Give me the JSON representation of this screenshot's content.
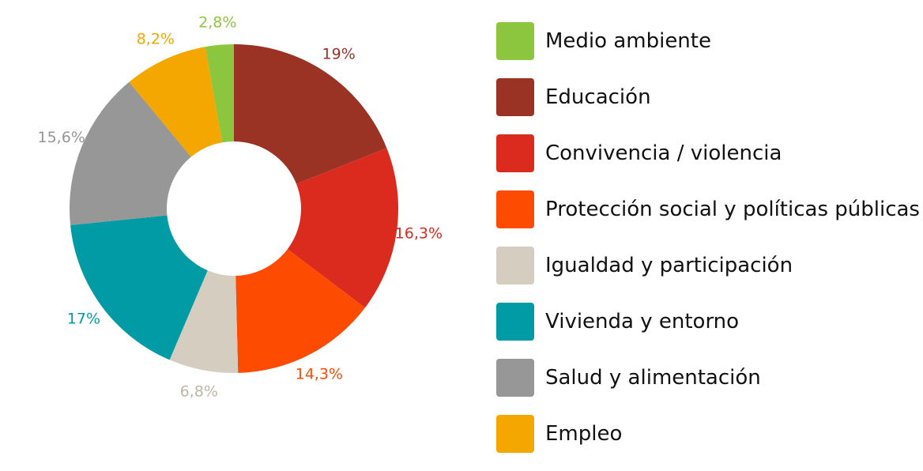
{
  "chart_data": {
    "type": "pie",
    "title": "",
    "donut": true,
    "legend_position": "right",
    "slices": [
      {
        "label": "Medio ambiente",
        "value": 2.8,
        "display": "2,8%",
        "color": "#8cc63f"
      },
      {
        "label": "Educación",
        "value": 19,
        "display": "19%",
        "color": "#9a3324"
      },
      {
        "label": "Convivencia / violencia",
        "value": 16.3,
        "display": "16,3%",
        "color": "#db2b1f"
      },
      {
        "label": "Protección social y políticas públicas",
        "value": 14.3,
        "display": "14,3%",
        "color": "#fe4b02"
      },
      {
        "label": "Igualdad y participación",
        "value": 6.8,
        "display": "6,8%",
        "color": "#d5cdbf"
      },
      {
        "label": "Vivienda y entorno",
        "value": 17,
        "display": "17%",
        "color": "#009ba4"
      },
      {
        "label": "Salud y alimentación",
        "value": 15.6,
        "display": "15,6%",
        "color": "#979797"
      },
      {
        "label": "Empleo",
        "value": 8.2,
        "display": "8,2%",
        "color": "#f3a700"
      }
    ]
  }
}
